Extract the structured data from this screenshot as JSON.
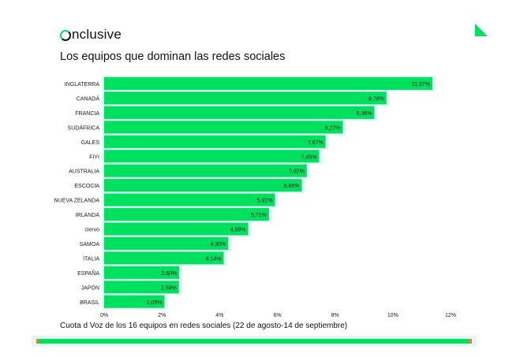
{
  "brand": {
    "logo_text": "nclusive",
    "accent": "#00e05f"
  },
  "header": {
    "title": "Los equipos que dominan las redes sociales"
  },
  "footer": {
    "caption": "Cuota d Voz de los 16 equipos en redes sociales (22 de agosto-14 de septiembre)"
  },
  "chart_data": {
    "type": "bar",
    "orientation": "horizontal",
    "title": "Los equipos que dominan las redes sociales",
    "xlabel": "",
    "ylabel": "",
    "xlim": [
      0,
      12
    ],
    "x_ticks": [
      "0%",
      "2%",
      "4%",
      "6%",
      "8%",
      "10%",
      "12%"
    ],
    "categories": [
      "INGLATERRA",
      "CANADÁ",
      "FRANCIA",
      "SUDÁFRICA",
      "GALES",
      "FIYI",
      "AUSTRALIA",
      "ESCOCIA",
      "NUEVA ZELANDA",
      "IRLANDA",
      "ciervo",
      "SAMOA",
      "ITALIA",
      "ESPAÑA",
      "JAPÓN",
      "BRASIL"
    ],
    "values": [
      11.37,
      9.78,
      9.36,
      8.27,
      7.67,
      7.45,
      7.02,
      6.85,
      5.92,
      5.71,
      4.99,
      4.3,
      4.14,
      2.6,
      2.59,
      2.09
    ],
    "value_labels": [
      "11,37%",
      "9,78%",
      "9,36%",
      "8,27%",
      "7,67%",
      "7,45%",
      "7,02%",
      "6,85%",
      "5,92%",
      "5,71%",
      "4,99%",
      "4,30%",
      "4,14%",
      "2,60%",
      "2,59%",
      "2,09%"
    ],
    "bar_color": "#00e05f",
    "shadow_color": "#d6f8f6",
    "grid": false,
    "legend": "none"
  }
}
